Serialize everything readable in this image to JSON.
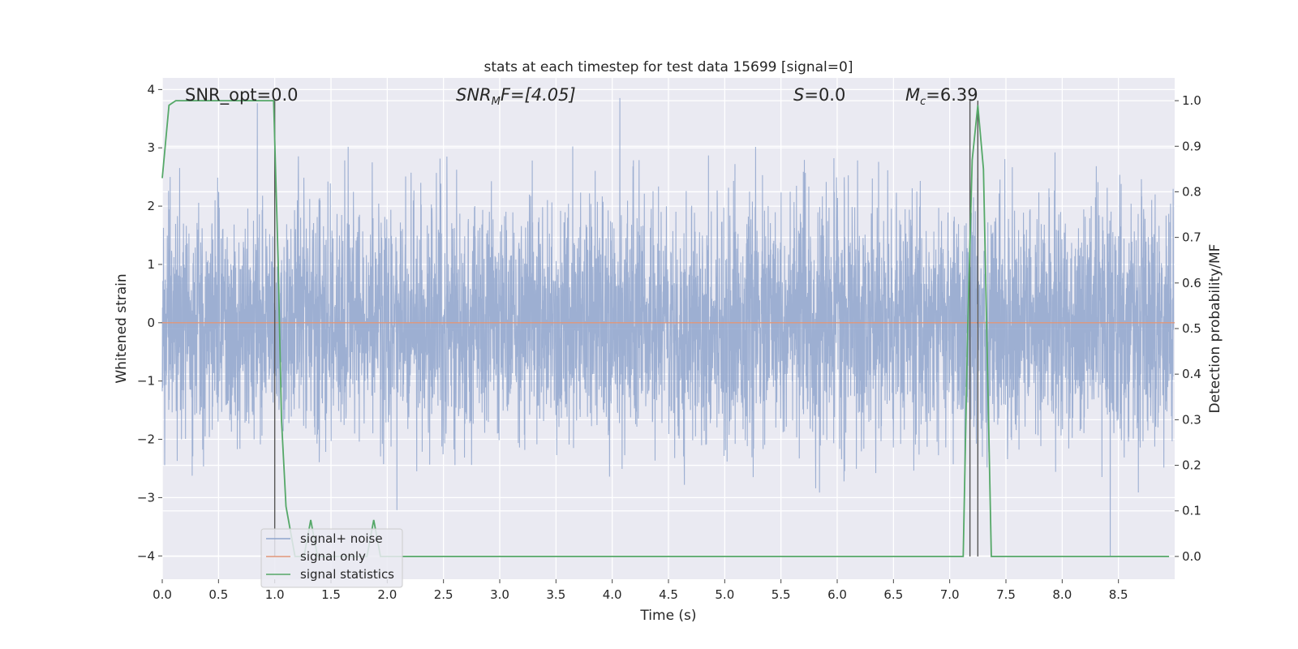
{
  "chart_data": {
    "type": "line",
    "title": "stats at each timestep for test data 15699 [signal=0]",
    "xlabel": "Time (s)",
    "ylabel": "Whitened strain",
    "y2label": "Detection probability/MF",
    "xlim": [
      0.0,
      9.0
    ],
    "ylim": [
      -4.4,
      4.2
    ],
    "y2lim": [
      -0.05,
      1.05
    ],
    "xticks": [
      "0.0",
      "0.5",
      "1.0",
      "1.5",
      "2.0",
      "2.5",
      "3.0",
      "3.5",
      "4.0",
      "4.5",
      "5.0",
      "5.5",
      "6.0",
      "6.5",
      "7.0",
      "7.5",
      "8.0",
      "8.5"
    ],
    "yticks": [
      "4",
      "3",
      "2",
      "1",
      "0",
      "−1",
      "−2",
      "−3",
      "−4"
    ],
    "y2ticks": [
      "1.0",
      "0.9",
      "0.8",
      "0.7",
      "0.6",
      "0.5",
      "0.4",
      "0.3",
      "0.2",
      "0.1",
      "0.0"
    ],
    "grid": true,
    "legend_position": "lower-left",
    "annotations": {
      "snr_opt": "SNR_opt=0.0",
      "snr_mf_base": "SNR",
      "snr_mf_sub": "M",
      "snr_mf_rest": "F=[4.05]",
      "s_italic": "S",
      "s_rest": "=0.0",
      "mc_base": "M",
      "mc_sub": "c",
      "mc_rest": "=6.39"
    },
    "vertical_lines_x": [
      1.0,
      7.18,
      7.25
    ],
    "series": [
      {
        "name": "signal+ noise",
        "color": "#8fa5cc",
        "axis": "left",
        "description_type": "noise",
        "std": 1.0,
        "peak_max": 3.9,
        "peak_min": -4.0
      },
      {
        "name": "signal only",
        "color": "#e1977a",
        "axis": "left",
        "x": [
          0.0,
          9.0
        ],
        "y": [
          0.0,
          0.0
        ]
      },
      {
        "name": "signal statistics",
        "color": "#55a868",
        "axis": "right",
        "x": [
          0.0,
          0.06,
          0.12,
          0.3,
          0.6,
          0.9,
          0.99,
          1.03,
          1.06,
          1.1,
          1.18,
          1.26,
          1.32,
          1.38,
          1.5,
          1.7,
          1.82,
          1.88,
          1.94,
          2.0,
          2.4,
          3.0,
          4.0,
          5.0,
          6.0,
          7.0,
          7.12,
          7.16,
          7.2,
          7.25,
          7.3,
          7.37,
          7.42,
          8.0,
          8.95
        ],
        "y": [
          0.83,
          0.99,
          1.0,
          1.0,
          1.0,
          1.0,
          1.0,
          0.65,
          0.3,
          0.11,
          0.0,
          0.0,
          0.08,
          0.0,
          0.0,
          0.0,
          0.0,
          0.08,
          0.0,
          0.0,
          0.0,
          0.0,
          0.0,
          0.0,
          0.0,
          0.0,
          0.0,
          0.5,
          0.87,
          0.99,
          0.85,
          0.0,
          0.0,
          0.0,
          0.0
        ]
      }
    ]
  }
}
